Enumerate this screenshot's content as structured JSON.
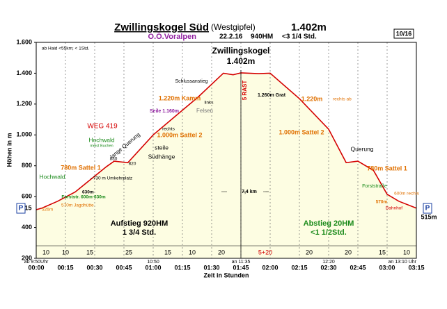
{
  "chart_data": {
    "type": "line",
    "title": "Zwillingskogel Süd",
    "title_suffix": "(Westgipfel)",
    "title_height": "1.402m",
    "region": "O.Ö.Voralpen",
    "date": "22.2.16",
    "ascent": "940HM",
    "duration": "<3 1/4 Std.",
    "page": "10/16",
    "y_label": "Höhen in m",
    "x_label": "Zeit in Stunden",
    "xlim": [
      0,
      195
    ],
    "xticks": [
      {
        "value": 0,
        "label": "00:00"
      },
      {
        "value": 15,
        "label": "00:15"
      },
      {
        "value": 30,
        "label": "00:30"
      },
      {
        "value": 45,
        "label": "00:45"
      },
      {
        "value": 60,
        "label": "01:00"
      },
      {
        "value": 75,
        "label": "01:15"
      },
      {
        "value": 90,
        "label": "01:30"
      },
      {
        "value": 105,
        "label": "01:45"
      },
      {
        "value": 120,
        "label": "02:00"
      },
      {
        "value": 135,
        "label": "02:15"
      },
      {
        "value": 150,
        "label": "02:30"
      },
      {
        "value": 165,
        "label": "02:45"
      },
      {
        "value": 180,
        "label": "03:00"
      },
      {
        "value": 195,
        "label": "03:15"
      }
    ],
    "ylim": [
      200,
      1600
    ],
    "yticks": [
      {
        "value": 200,
        "label": "200"
      },
      {
        "value": 400,
        "label": "400"
      },
      {
        "value": 600,
        "label": "600"
      },
      {
        "value": 800,
        "label": "800"
      },
      {
        "value": 1000,
        "label": "1.000"
      },
      {
        "value": 1200,
        "label": "1.200"
      },
      {
        "value": 1400,
        "label": "1.400"
      },
      {
        "value": 1600,
        "label": "1.600"
      }
    ],
    "grid": true,
    "series": [
      {
        "color": "#d40000",
        "x": [
          0,
          3,
          11,
          20,
          36,
          40,
          47,
          60,
          75,
          83,
          96,
          101,
          105,
          114,
          120,
          135,
          150,
          159,
          165,
          173,
          180,
          186,
          195
        ],
        "values": [
          515,
          526,
          570,
          630,
          794,
          830,
          820,
          1000,
          1160,
          1245,
          1400,
          1390,
          1402,
          1397,
          1400,
          1235,
          1037,
          820,
          830,
          770,
          615,
          570,
          525
        ]
      }
    ],
    "durations": {
      "values": [
        10,
        10,
        15,
        25,
        15,
        10,
        20,
        25,
        20,
        20,
        15,
        10
      ],
      "value_labels": [
        "10",
        "10",
        "15",
        "25",
        "15",
        "10",
        "20",
        "5+20",
        "20",
        "20",
        "15",
        "10"
      ]
    },
    "times": [
      "ab 9:50Uhr",
      "10:50",
      "an 11:35",
      "12:20",
      "an 13:10 Uhr"
    ],
    "annotations": [
      "ab Haid <55km; < 1Std.",
      "Zwillingskogel",
      "1.402m",
      "Schlussanstieg",
      "links",
      "Felsen",
      "5 RAST",
      "1.260m Grat",
      "1.220m Kamm",
      "1.220m",
      "rechts ab",
      "Seile 1.160m",
      "rechts",
      "1.000m Sattel 2",
      "WEG 419",
      "Hochwald",
      "meist Buchen",
      "lange Querung",
      "830",
      "820",
      "steile",
      "Südhänge",
      "780m Sattel 1",
      "~730 m Umkehrplatz",
      "Hochwald",
      "630m",
      "Forststr. 600m-630m",
      "570m Jagdhütte",
      "526m",
      "1.000m Sattel 2",
      "Querung",
      "780m Sattel 1",
      "Forststraße",
      "600m rechts",
      "570m",
      "Bahnhof",
      "515m",
      "515",
      "7,4 km",
      "Aufstieg 920HM",
      "1 3/4 Std.",
      "Abstieg 20HM",
      "<1 1/2Std.",
      "P",
      "P"
    ]
  }
}
